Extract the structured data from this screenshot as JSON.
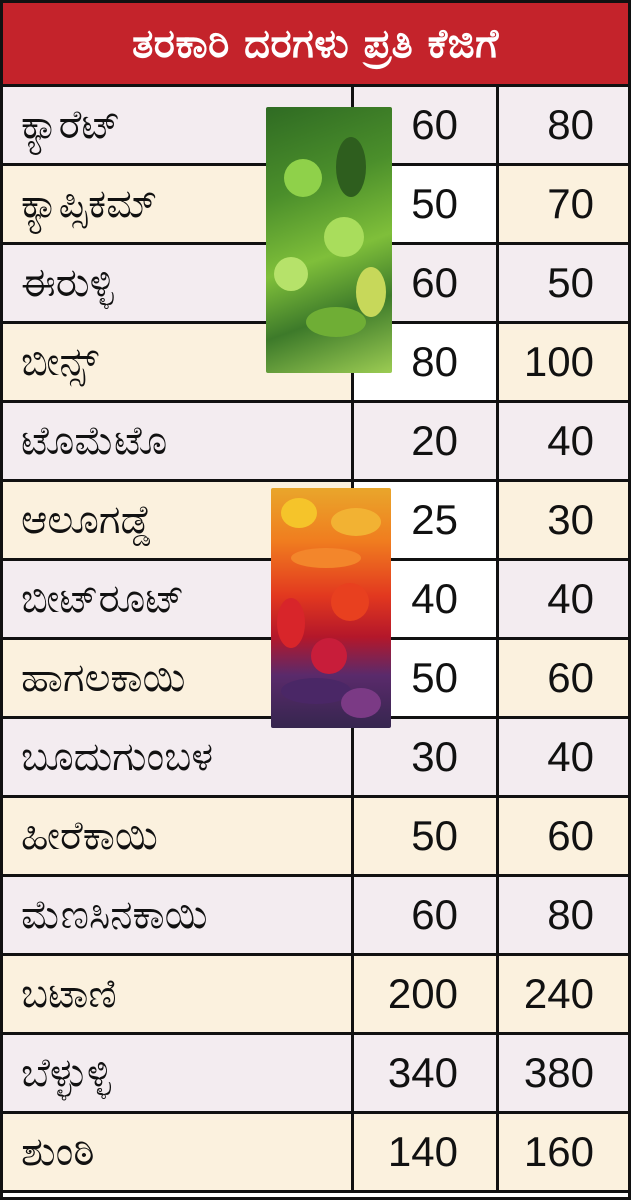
{
  "title": "ತರಕಾರಿ ದರಗಳು ಪ್ರತಿ ಕೆಜಿಗೆ",
  "rows": [
    {
      "name": "ಕ್ಯಾರೆಟ್",
      "v1": "60",
      "v2": "80"
    },
    {
      "name": "ಕ್ಯಾಪ್ಸಿಕಮ್",
      "v1": "50",
      "v2": "70"
    },
    {
      "name": "ಈರುಳ್ಳಿ",
      "v1": "60",
      "v2": "50"
    },
    {
      "name": "ಬೀನ್ಸ್",
      "v1": "80",
      "v2": "100"
    },
    {
      "name": "ಟೊಮೆಟೊ",
      "v1": "20",
      "v2": "40"
    },
    {
      "name": "ಆಲೂಗಡ್ಡೆ",
      "v1": "25",
      "v2": "30"
    },
    {
      "name": "ಬೀಟ್‌ರೂಟ್",
      "v1": "40",
      "v2": "40"
    },
    {
      "name": "ಹಾಗಲಕಾಯಿ",
      "v1": "50",
      "v2": "60"
    },
    {
      "name": "ಬೂದುಗುಂಬಳ",
      "v1": "30",
      "v2": "40"
    },
    {
      "name": "ಹೀರೆಕಾಯಿ",
      "v1": "50",
      "v2": "60"
    },
    {
      "name": "ಮೆಣಸಿನಕಾಯಿ",
      "v1": "60",
      "v2": "80"
    },
    {
      "name": "ಬಟಾಣಿ",
      "v1": "200",
      "v2": "240"
    },
    {
      "name": "ಬೆಳ್ಳುಳ್ಳಿ",
      "v1": "340",
      "v2": "380"
    },
    {
      "name": "ಶುಂಠಿ",
      "v1": "140",
      "v2": "160"
    }
  ],
  "colors": {
    "title_bg": "#c4232b",
    "row_even": "#f3ecf0",
    "row_odd": "#fbf1de"
  },
  "images": [
    "green-vegetables-photo",
    "colorful-vegetables-photo"
  ]
}
